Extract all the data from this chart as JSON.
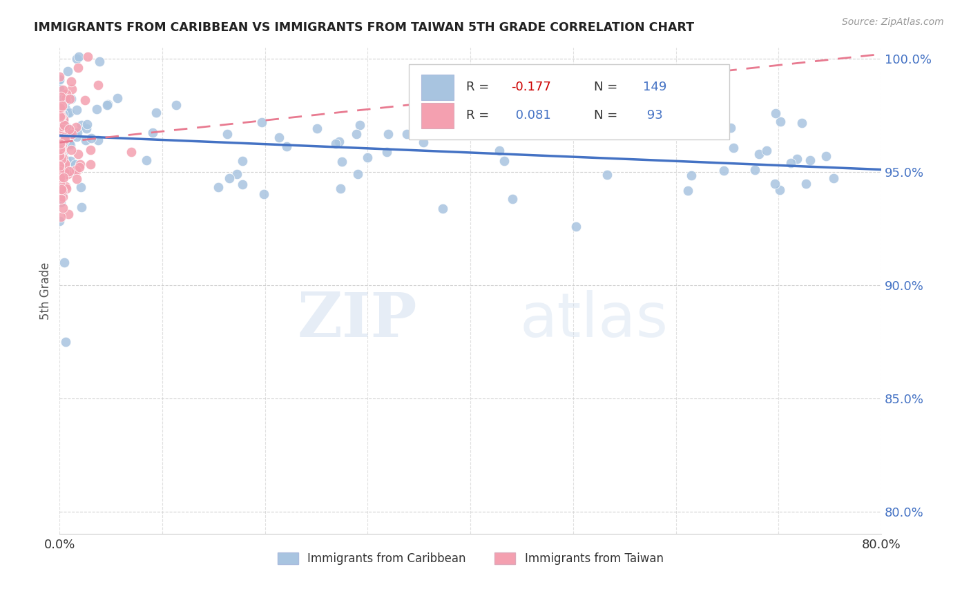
{
  "title": "IMMIGRANTS FROM CARIBBEAN VS IMMIGRANTS FROM TAIWAN 5TH GRADE CORRELATION CHART",
  "source": "Source: ZipAtlas.com",
  "ylabel": "5th Grade",
  "xlim": [
    0.0,
    0.8
  ],
  "ylim": [
    0.79,
    1.005
  ],
  "x_tick_positions": [
    0.0,
    0.1,
    0.2,
    0.3,
    0.4,
    0.5,
    0.6,
    0.7,
    0.8
  ],
  "x_tick_labels": [
    "0.0%",
    "",
    "",
    "",
    "",
    "",
    "",
    "",
    "80.0%"
  ],
  "y_ticks_right": [
    0.8,
    0.85,
    0.9,
    0.95,
    1.0
  ],
  "y_tick_labels_right": [
    "80.0%",
    "85.0%",
    "90.0%",
    "95.0%",
    "100.0%"
  ],
  "caribbean_color": "#a8c4e0",
  "taiwan_color": "#f4a0b0",
  "caribbean_R": -0.177,
  "caribbean_N": 149,
  "taiwan_R": 0.081,
  "taiwan_N": 93,
  "caribbean_line_color": "#4472c4",
  "taiwan_line_color": "#e87a90",
  "watermark_zip": "ZIP",
  "watermark_atlas": "atlas",
  "background_color": "#ffffff",
  "grid_color": "#cccccc",
  "title_color": "#222222",
  "right_axis_color": "#4472c4",
  "legend_R_color": "#4472c4",
  "legend_neg_color": "#cc0000",
  "legend_pos_color": "#4472c4",
  "legend_N_color": "#4472c4"
}
